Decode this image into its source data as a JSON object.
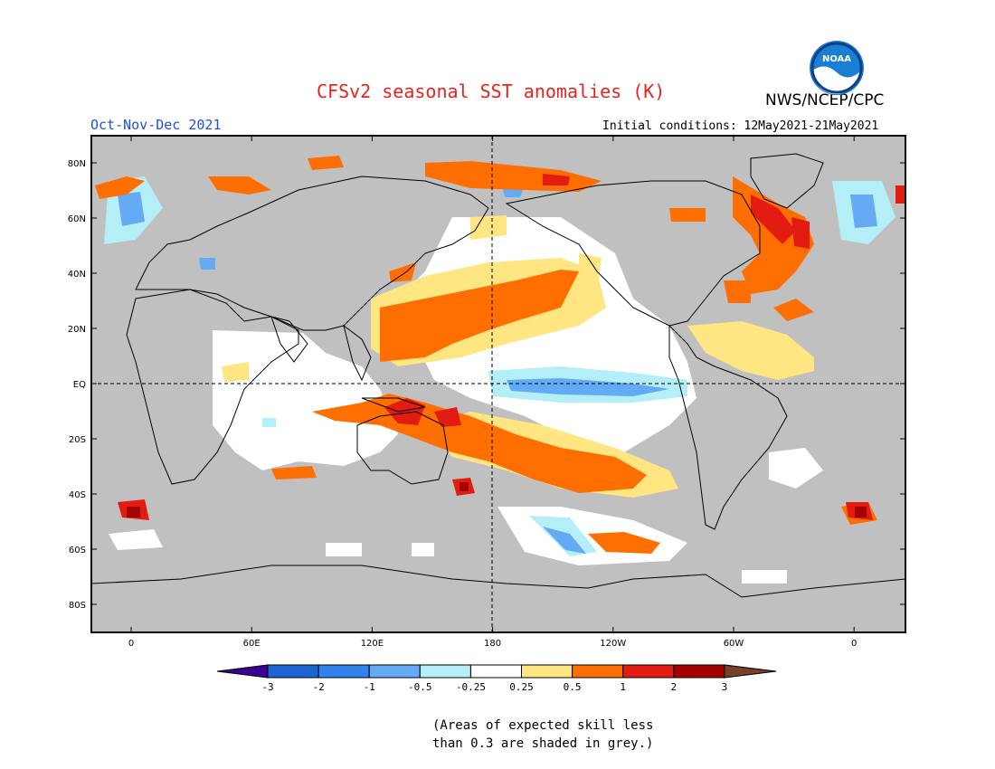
{
  "title": "CFSv2 seasonal SST anomalies (K)",
  "agency": "NWS/NCEP/CPC",
  "logo_text": "NOAA",
  "period": "Oct-Nov-Dec 2021",
  "initial_conditions": "Initial conditions: 12May2021-21May2021",
  "lat_labels": [
    "80N",
    "60N",
    "40N",
    "20N",
    "EQ",
    "20S",
    "40S",
    "60S",
    "80S"
  ],
  "lon_labels": [
    "0",
    "60E",
    "120E",
    "180",
    "120W",
    "60W",
    "0"
  ],
  "colorbar": {
    "tick_labels": [
      "-3",
      "-2",
      "-1",
      "-0.5",
      "-0.25",
      "0.25",
      "0.5",
      "1",
      "2",
      "3"
    ],
    "colors": [
      "#3c0096",
      "#1e64d2",
      "#3282ec",
      "#64aaf4",
      "#b4eef6",
      "#ffffff",
      "#ffe682",
      "#ff6e00",
      "#e21c10",
      "#a50000",
      "#784028"
    ]
  },
  "note_line1": "(Areas of expected skill less",
  "note_line2": "than 0.3 are shaded in grey.)",
  "colors": {
    "title": "#e8231f",
    "period": "#2050d8",
    "ocean_low_skill": "#c0c0c0",
    "neutral": "#ffffff",
    "warm_weak": "#ffe682",
    "warm": "#ff6e00",
    "warm_strong": "#e21c10",
    "cool_weak": "#b4eef6",
    "cool": "#64aaf4"
  }
}
